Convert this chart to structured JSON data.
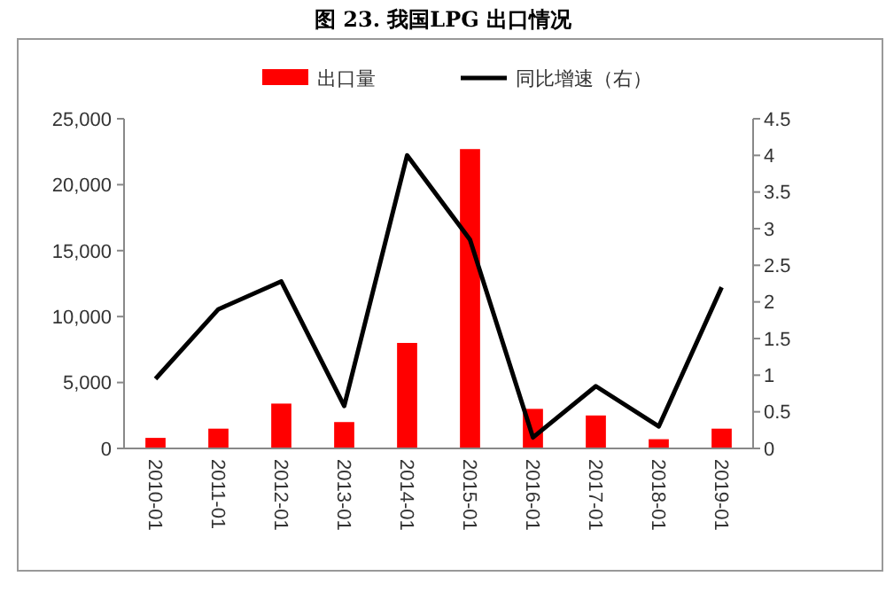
{
  "chart_data": {
    "type": "bar",
    "title": "图 23. 我国LPG 出口情况",
    "categories": [
      "2010-01",
      "2011-01",
      "2012-01",
      "2013-01",
      "2014-01",
      "2015-01",
      "2016-01",
      "2017-01",
      "2018-01",
      "2019-01"
    ],
    "series": [
      {
        "name": "出口量",
        "color": "#ff0000",
        "values": [
          800,
          1500,
          3400,
          2000,
          8000,
          22700,
          3000,
          2500,
          700,
          1500
        ]
      },
      {
        "name": "同比增速（右）",
        "type": "line",
        "axis": "y2",
        "color": "#000000",
        "values": [
          0.95,
          1.9,
          2.28,
          0.58,
          4.0,
          2.85,
          0.15,
          0.85,
          0.3,
          2.2
        ]
      }
    ],
    "ylim": [
      0,
      25000
    ],
    "yticks": [
      {
        "value": 0,
        "label": "0"
      },
      {
        "value": 5000,
        "label": "5,000"
      },
      {
        "value": 10000,
        "label": "10,000"
      },
      {
        "value": 15000,
        "label": "15,000"
      },
      {
        "value": 20000,
        "label": "20,000"
      },
      {
        "value": 25000,
        "label": "25,000"
      }
    ],
    "y2lim": [
      0,
      4.5
    ],
    "y2ticks": [
      0,
      0.5,
      1,
      1.5,
      2,
      2.5,
      3,
      3.5,
      4,
      4.5
    ],
    "legend": "top",
    "grid": false,
    "marker": "none",
    "line_style": "solid"
  }
}
